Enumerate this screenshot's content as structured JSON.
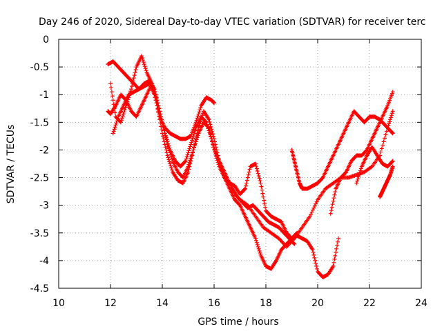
{
  "chart_data": {
    "type": "scatter",
    "title": "Day 246 of 2020, Sidereal Day-to-day VTEC variation (SDTVAR) for receiver terc",
    "xlabel": "GPS time / hours",
    "ylabel": "SDTVAR / TECUs",
    "xlim": [
      10,
      24
    ],
    "ylim": [
      -4.5,
      0
    ],
    "xticks": [
      "10",
      "12",
      "14",
      "16",
      "18",
      "20",
      "22",
      "24"
    ],
    "yticks": [
      "0",
      "-0.5",
      "-1",
      "-1.5",
      "-2",
      "-2.5",
      "-3",
      "-3.5",
      "-4",
      "-4.5"
    ],
    "grid": true,
    "marker": "+",
    "marker_color": "#ff0000",
    "series": [
      {
        "x": [
          11.9,
          12.1,
          12.3,
          12.5,
          12.7,
          12.9,
          13.1,
          13.3,
          13.5,
          13.7,
          13.9,
          14.1,
          14.3,
          14.5,
          14.7,
          14.9,
          15.1,
          15.3,
          15.5,
          15.7,
          15.9,
          16.0
        ],
        "y": [
          -0.45,
          -0.4,
          -0.5,
          -0.6,
          -0.7,
          -0.8,
          -0.9,
          -0.85,
          -0.8,
          -1.0,
          -1.4,
          -1.6,
          -1.7,
          -1.75,
          -1.8,
          -1.8,
          -1.75,
          -1.5,
          -1.2,
          -1.05,
          -1.1,
          -1.15
        ]
      },
      {
        "x": [
          11.9,
          12.0,
          12.2,
          12.4,
          12.6,
          12.8,
          13.0,
          13.2,
          13.4,
          13.6,
          13.8,
          14.0,
          14.2,
          14.4,
          14.6,
          14.8,
          15.0,
          15.2,
          15.4,
          15.6,
          15.8,
          16.0,
          16.2,
          16.4,
          16.6,
          16.8,
          17.0,
          17.2,
          17.4,
          17.6,
          17.8,
          18.0,
          18.2,
          18.4,
          18.6,
          18.8,
          19.0,
          19.2
        ],
        "y": [
          -1.3,
          -1.35,
          -1.2,
          -1.0,
          -1.1,
          -1.3,
          -1.4,
          -1.2,
          -1.0,
          -0.8,
          -1.2,
          -1.7,
          -2.1,
          -2.4,
          -2.55,
          -2.6,
          -2.4,
          -2.0,
          -1.7,
          -1.5,
          -1.6,
          -2.0,
          -2.3,
          -2.5,
          -2.6,
          -2.65,
          -2.8,
          -2.7,
          -2.3,
          -2.25,
          -2.6,
          -3.1,
          -3.2,
          -3.25,
          -3.3,
          -3.5,
          -3.6,
          -3.5
        ]
      },
      {
        "x": [
          12.0,
          12.2,
          12.4,
          12.6,
          12.8,
          13.0,
          13.2,
          13.4,
          13.6,
          13.8,
          14.0,
          14.2,
          14.4,
          14.6,
          14.8,
          15.0,
          15.2,
          15.4,
          15.6,
          15.8,
          16.0,
          16.2,
          16.4,
          16.6,
          16.8,
          17.0,
          17.2,
          17.4,
          17.6,
          17.8,
          18.0,
          18.2,
          18.4,
          18.6,
          18.8,
          19.0,
          19.2,
          19.4,
          19.6,
          19.8,
          20.0,
          20.2,
          20.4,
          20.6,
          20.8
        ],
        "y": [
          -0.8,
          -1.4,
          -1.5,
          -1.2,
          -0.9,
          -0.5,
          -0.3,
          -0.6,
          -0.8,
          -1.1,
          -1.5,
          -1.9,
          -2.2,
          -2.4,
          -2.5,
          -2.3,
          -2.0,
          -1.6,
          -1.3,
          -1.45,
          -1.8,
          -2.2,
          -2.5,
          -2.7,
          -2.9,
          -3.0,
          -3.2,
          -3.4,
          -3.6,
          -3.9,
          -4.1,
          -4.15,
          -4.0,
          -3.8,
          -3.7,
          -3.6,
          -3.55,
          -3.6,
          -3.65,
          -3.8,
          -4.2,
          -4.3,
          -4.25,
          -4.1,
          -3.6
        ]
      },
      {
        "x": [
          12.1,
          12.3,
          12.5,
          12.7,
          12.9,
          13.1,
          13.3,
          13.5,
          13.7,
          13.9,
          14.1,
          14.3,
          14.5,
          14.7,
          14.9,
          15.1,
          15.3,
          15.5,
          15.7,
          15.9,
          16.1,
          16.3,
          16.5,
          16.7,
          16.9,
          17.1,
          17.3,
          17.5,
          17.7,
          17.9,
          18.1,
          18.3,
          18.5,
          18.7,
          18.9,
          19.1
        ],
        "y": [
          -1.7,
          -1.4,
          -1.2,
          -1.0,
          -0.95,
          -0.9,
          -0.8,
          -0.75,
          -0.9,
          -1.3,
          -1.7,
          -2.0,
          -2.2,
          -2.3,
          -2.2,
          -1.9,
          -1.6,
          -1.4,
          -1.5,
          -1.8,
          -2.1,
          -2.3,
          -2.5,
          -2.7,
          -2.85,
          -2.95,
          -3.05,
          -3.0,
          -3.1,
          -3.2,
          -3.3,
          -3.35,
          -3.4,
          -3.5,
          -3.6,
          -3.7
        ]
      },
      {
        "x": [
          17.0,
          17.3,
          17.6,
          17.9,
          18.2,
          18.5,
          18.8,
          19.1,
          19.4,
          19.7,
          20.0,
          20.3,
          20.6,
          20.9,
          21.2,
          21.5,
          21.8,
          22.1,
          22.4,
          22.7,
          22.9
        ],
        "y": [
          -2.9,
          -3.0,
          -3.2,
          -3.4,
          -3.5,
          -3.6,
          -3.75,
          -3.6,
          -3.4,
          -3.2,
          -2.9,
          -2.7,
          -2.6,
          -2.5,
          -2.5,
          -2.45,
          -2.4,
          -2.3,
          -2.1,
          -1.6,
          -1.3
        ]
      },
      {
        "x": [
          19.0,
          19.1,
          19.2,
          19.3,
          19.4,
          19.6,
          19.8,
          20.0,
          20.2,
          20.4,
          20.6,
          20.8,
          21.0,
          21.2,
          21.4,
          21.6,
          21.8,
          22.0,
          22.2,
          22.4,
          22.6,
          22.8,
          22.9
        ],
        "y": [
          -2.0,
          -2.2,
          -2.4,
          -2.6,
          -2.7,
          -2.7,
          -2.65,
          -2.6,
          -2.5,
          -2.3,
          -2.1,
          -1.9,
          -1.7,
          -1.5,
          -1.3,
          -1.4,
          -1.5,
          -1.4,
          -1.4,
          -1.45,
          -1.55,
          -1.65,
          -1.7
        ]
      },
      {
        "x": [
          20.5,
          20.7,
          20.9,
          21.1,
          21.3,
          21.5,
          21.7,
          21.9,
          22.1,
          22.3,
          22.5,
          22.7,
          22.9
        ],
        "y": [
          -3.15,
          -2.7,
          -2.5,
          -2.4,
          -2.2,
          -2.1,
          -2.1,
          -2.0,
          -1.8,
          -1.6,
          -1.4,
          -1.2,
          -0.95
        ]
      },
      {
        "x": [
          21.5,
          21.7,
          21.9,
          22.1,
          22.3,
          22.5,
          22.7,
          22.9
        ],
        "y": [
          -2.6,
          -2.3,
          -2.1,
          -1.95,
          -2.1,
          -2.25,
          -2.3,
          -2.2
        ]
      },
      {
        "x": [
          22.4,
          22.5,
          22.6,
          22.7,
          22.8,
          22.9
        ],
        "y": [
          -2.85,
          -2.75,
          -2.65,
          -2.55,
          -2.45,
          -2.3
        ]
      }
    ]
  }
}
